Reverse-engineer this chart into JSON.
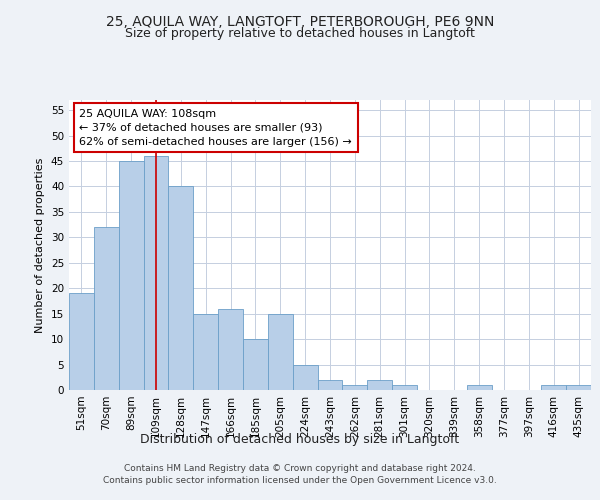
{
  "title1": "25, AQUILA WAY, LANGTOFT, PETERBOROUGH, PE6 9NN",
  "title2": "Size of property relative to detached houses in Langtoft",
  "xlabel": "Distribution of detached houses by size in Langtoft",
  "ylabel": "Number of detached properties",
  "categories": [
    "51sqm",
    "70sqm",
    "89sqm",
    "109sqm",
    "128sqm",
    "147sqm",
    "166sqm",
    "185sqm",
    "205sqm",
    "224sqm",
    "243sqm",
    "262sqm",
    "281sqm",
    "301sqm",
    "320sqm",
    "339sqm",
    "358sqm",
    "377sqm",
    "397sqm",
    "416sqm",
    "435sqm"
  ],
  "values": [
    19,
    32,
    45,
    46,
    40,
    15,
    16,
    10,
    15,
    5,
    2,
    1,
    2,
    1,
    0,
    0,
    1,
    0,
    0,
    1,
    1
  ],
  "bar_color": "#b8cfe8",
  "bar_edge_color": "#6b9fc8",
  "vline_x": 3.0,
  "vline_color": "#cc0000",
  "annotation_text": "25 AQUILA WAY: 108sqm\n← 37% of detached houses are smaller (93)\n62% of semi-detached houses are larger (156) →",
  "annotation_box_color": "#ffffff",
  "annotation_box_edge_color": "#cc0000",
  "ylim": [
    0,
    57
  ],
  "yticks": [
    0,
    5,
    10,
    15,
    20,
    25,
    30,
    35,
    40,
    45,
    50,
    55
  ],
  "footer_line1": "Contains HM Land Registry data © Crown copyright and database right 2024.",
  "footer_line2": "Contains public sector information licensed under the Open Government Licence v3.0.",
  "background_color": "#eef2f7",
  "plot_background_color": "#ffffff",
  "grid_color": "#c5cfe0",
  "title1_fontsize": 10,
  "title2_fontsize": 9,
  "xlabel_fontsize": 9,
  "ylabel_fontsize": 8,
  "tick_fontsize": 7.5,
  "annotation_fontsize": 8,
  "footer_fontsize": 6.5
}
